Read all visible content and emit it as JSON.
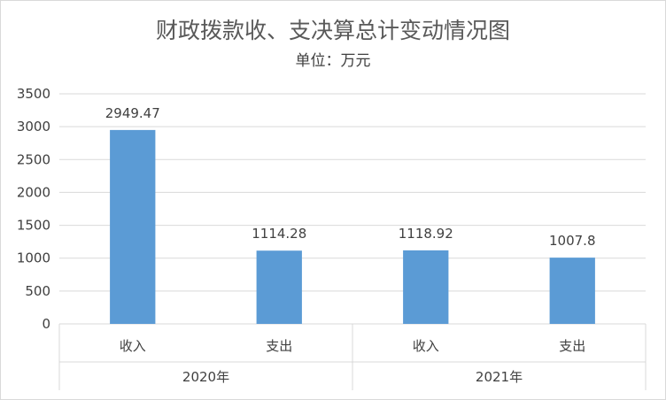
{
  "chart_data": {
    "type": "bar",
    "title": "财政拨款收、支决算总计变动情况图",
    "subtitle": "单位：万元",
    "groups": [
      {
        "label": "2020年",
        "categories": [
          "收入",
          "支出"
        ],
        "values": [
          2949.47,
          1114.28
        ]
      },
      {
        "label": "2021年",
        "categories": [
          "收入",
          "支出"
        ],
        "values": [
          1118.92,
          1007.8
        ]
      }
    ],
    "data_labels": [
      "2949.47",
      "1114.28",
      "1118.92",
      "1007.8"
    ],
    "y_ticks": [
      "0",
      "500",
      "1000",
      "1500",
      "2000",
      "2500",
      "3000",
      "3500"
    ],
    "ylim": [
      0,
      3500
    ],
    "grid": true,
    "legend": "none",
    "bar_color": "#5b9bd5",
    "grid_color": "#d9d9d9"
  }
}
